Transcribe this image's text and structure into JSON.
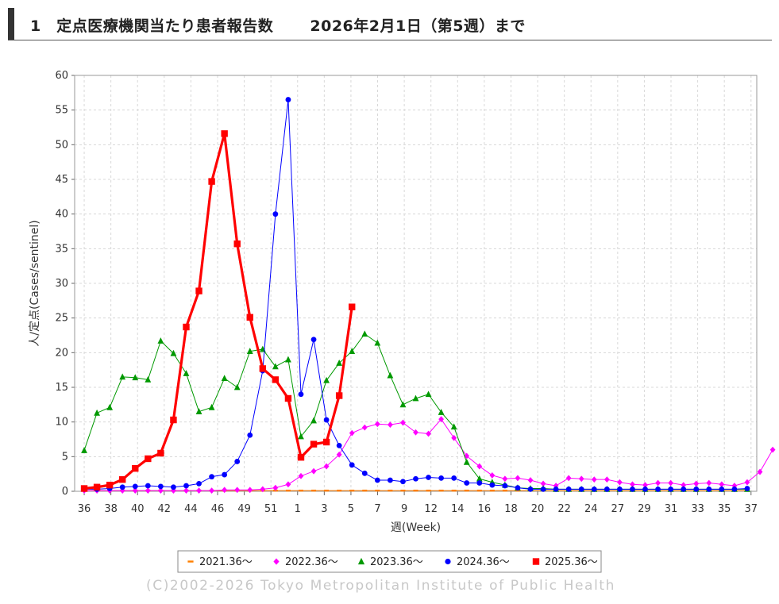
{
  "header": {
    "section_number": "1",
    "title": "定点医療機関当たり患者報告数",
    "date": "2026年2月1日（第5週）まで"
  },
  "footer": {
    "copyright": "(C)2002-2026 Tokyo Metropolitan Institute of Public Health"
  },
  "chart_data": {
    "type": "line",
    "title": "",
    "xlabel": "週(Week)",
    "ylabel": "人/定点(Cases/sentinel)",
    "ylim": [
      0,
      60
    ],
    "yticks": [
      0,
      5,
      10,
      15,
      20,
      25,
      30,
      35,
      40,
      45,
      50,
      55,
      60
    ],
    "x_tick_labels": [
      "36",
      "38",
      "40",
      "42",
      "44",
      "46",
      "49",
      "51",
      "1",
      "3",
      "5",
      "7",
      "9",
      "12",
      "14",
      "16",
      "18",
      "20",
      "22",
      "24",
      "27",
      "29",
      "31",
      "33",
      "35",
      "37"
    ],
    "grid": true,
    "legend_position": "bottom",
    "series": [
      {
        "name": "2021.36〜",
        "color": "#ff7f00",
        "marker": "dash",
        "line_width": 1,
        "values": [
          0.1,
          0.1,
          0.1,
          0.1,
          0.1,
          0.1,
          0.1,
          0.1,
          0.1,
          0.1,
          0.1,
          0.1,
          0.1,
          0.1,
          0.1,
          0.1,
          0.1,
          0.1,
          0.1,
          0.1,
          0.1,
          0.1,
          0.1,
          0.1,
          0.1,
          0.1,
          0.1,
          0.1,
          0.1,
          0.1,
          0.1,
          0.1,
          0.1,
          0.1,
          0.1,
          0.1,
          0.1,
          0.1,
          0.1,
          0.1,
          0.1,
          0.1,
          0.1,
          0.1,
          0.1,
          0.1,
          0.1,
          0.1,
          0.1,
          0.1,
          0.1,
          0.1,
          0.1
        ]
      },
      {
        "name": "2022.36〜",
        "color": "#ff00ff",
        "marker": "diamond",
        "line_width": 1,
        "values": [
          0.1,
          0.1,
          0.1,
          0.1,
          0.1,
          0.1,
          0.1,
          0.1,
          0.1,
          0.1,
          0.1,
          0.2,
          0.2,
          0.2,
          0.3,
          0.5,
          1.0,
          2.2,
          2.9,
          3.6,
          5.3,
          8.4,
          9.2,
          9.7,
          9.6,
          9.9,
          8.5,
          8.3,
          10.4,
          7.7,
          5.1,
          3.6,
          2.3,
          1.8,
          1.9,
          1.6,
          1.1,
          0.8,
          1.9,
          1.8,
          1.7,
          1.7,
          1.3,
          1.0,
          0.9,
          1.2,
          1.2,
          0.9,
          1.1,
          1.2,
          1.0,
          0.8,
          1.3,
          2.8,
          6.0
        ]
      },
      {
        "name": "2023.36〜",
        "color": "#009900",
        "marker": "triangle",
        "line_width": 1,
        "values": [
          5.9,
          11.3,
          12.1,
          16.5,
          16.4,
          16.1,
          21.7,
          19.9,
          17.0,
          11.5,
          12.1,
          16.3,
          15.0,
          20.2,
          20.5,
          18.0,
          19.0,
          7.9,
          10.2,
          16.0,
          18.5,
          20.2,
          22.7,
          21.4,
          16.7,
          12.5,
          13.4,
          14.0,
          11.4,
          9.3,
          4.2,
          1.8,
          1.3,
          0.9,
          0.5,
          0.4,
          0.4,
          0.3,
          0.3,
          0.3,
          0.3,
          0.3,
          0.3,
          0.3,
          0.3,
          0.3,
          0.3,
          0.3,
          0.3,
          0.3,
          0.3,
          0.3,
          0.3
        ]
      },
      {
        "name": "2024.36〜",
        "color": "#0000ff",
        "marker": "circle",
        "line_width": 1,
        "values": [
          0.3,
          0.3,
          0.4,
          0.6,
          0.7,
          0.8,
          0.7,
          0.6,
          0.8,
          1.1,
          2.1,
          2.4,
          4.3,
          8.1,
          17.4,
          40.0,
          56.5,
          14.0,
          21.9,
          10.3,
          6.6,
          3.8,
          2.6,
          1.6,
          1.6,
          1.4,
          1.8,
          2.0,
          1.9,
          1.9,
          1.2,
          1.2,
          0.9,
          0.8,
          0.5,
          0.3,
          0.3,
          0.3,
          0.3,
          0.3,
          0.3,
          0.3,
          0.3,
          0.3,
          0.3,
          0.3,
          0.3,
          0.3,
          0.3,
          0.3,
          0.3,
          0.3,
          0.4
        ]
      },
      {
        "name": "2025.36〜",
        "color": "#ff0000",
        "marker": "square",
        "line_width": 3.2,
        "values": [
          0.4,
          0.6,
          0.9,
          1.7,
          3.3,
          4.7,
          5.5,
          10.3,
          23.7,
          28.9,
          44.7,
          51.6,
          35.7,
          25.1,
          17.7,
          16.1,
          13.4,
          4.9,
          6.8,
          7.1,
          13.8,
          26.6
        ]
      }
    ]
  }
}
